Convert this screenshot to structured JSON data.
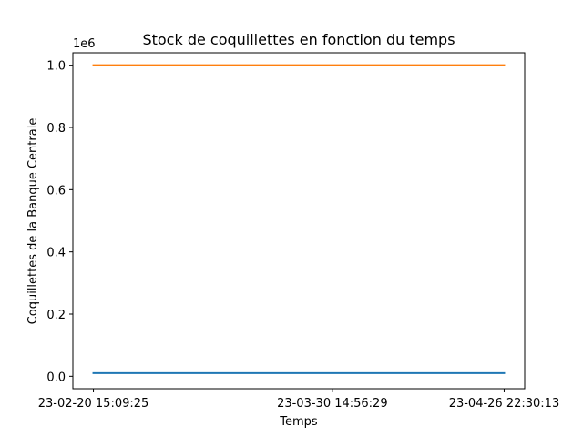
{
  "chart_data": {
    "type": "line",
    "title": "Stock de coquillettes en fonction du temps",
    "xlabel": "Temps",
    "ylabel": "Coquillettes de la Banque Centrale",
    "y_offset_label": "1e6",
    "x": [
      "23-02-20 15:09:25",
      "23-03-30 14:56:29",
      "23-04-26 22:30:13"
    ],
    "xticks": [
      "23-02-20 15:09:25",
      "23-03-30 14:56:29",
      "23-04-26 22:30:13"
    ],
    "yticks": [
      0.0,
      0.2,
      0.4,
      0.6,
      0.8,
      1.0
    ],
    "ytick_labels": [
      "0.0",
      "0.2",
      "0.4",
      "0.6",
      "0.8",
      "1.0"
    ],
    "ylim": [
      -0.04,
      1.04
    ],
    "grid": false,
    "series": [
      {
        "values": [
          10000,
          10000,
          10000
        ],
        "color": "#1f77b4"
      },
      {
        "values": [
          1000000,
          1000000,
          1000000
        ],
        "color": "#ff7f0e"
      }
    ]
  }
}
